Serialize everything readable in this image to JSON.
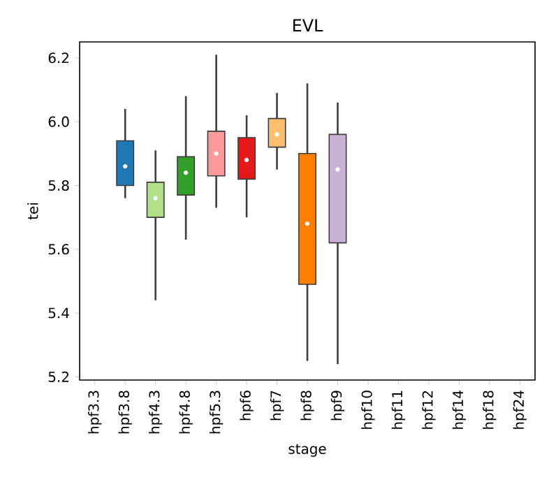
{
  "chart_data": {
    "type": "box",
    "title": "EVL",
    "xlabel": "stage",
    "ylabel": "tei",
    "categories": [
      "hpf3.3",
      "hpf3.8",
      "hpf4.3",
      "hpf4.8",
      "hpf5.3",
      "hpf6",
      "hpf7",
      "hpf8",
      "hpf9",
      "hpf10",
      "hpf11",
      "hpf12",
      "hpf14",
      "hpf18",
      "hpf24"
    ],
    "colors": [
      "#1f77b4",
      "#1f77b4",
      "#b2df8a",
      "#33a02c",
      "#fb9a99",
      "#e31a1c",
      "#fdbf6f",
      "#ff7f00",
      "#cab2d6",
      "#6a3d9a",
      "#ffff99",
      "#b15928",
      "#a6cee3",
      "#1f78b4",
      "#b2df8a"
    ],
    "boxes": [
      null,
      {
        "low": 5.76,
        "q1": 5.8,
        "median": 5.86,
        "q3": 5.94,
        "high": 6.04
      },
      {
        "low": 5.44,
        "q1": 5.7,
        "median": 5.76,
        "q3": 5.81,
        "high": 5.91
      },
      {
        "low": 5.63,
        "q1": 5.77,
        "median": 5.84,
        "q3": 5.89,
        "high": 6.08
      },
      {
        "low": 5.73,
        "q1": 5.83,
        "median": 5.9,
        "q3": 5.97,
        "high": 6.21
      },
      {
        "low": 5.7,
        "q1": 5.82,
        "median": 5.88,
        "q3": 5.95,
        "high": 6.02
      },
      {
        "low": 5.85,
        "q1": 5.92,
        "median": 5.96,
        "q3": 6.01,
        "high": 6.09
      },
      {
        "low": 5.25,
        "q1": 5.49,
        "median": 5.68,
        "q3": 5.9,
        "high": 6.12
      },
      {
        "low": 5.24,
        "q1": 5.62,
        "median": 5.85,
        "q3": 5.96,
        "high": 6.06
      },
      null,
      null,
      null,
      null,
      null,
      null
    ],
    "ylim": [
      5.19,
      6.25
    ],
    "yticks": [
      5.2,
      5.4,
      5.6,
      5.8,
      {
        "value": 6,
        "label": "6.0"
      },
      6.2
    ]
  }
}
